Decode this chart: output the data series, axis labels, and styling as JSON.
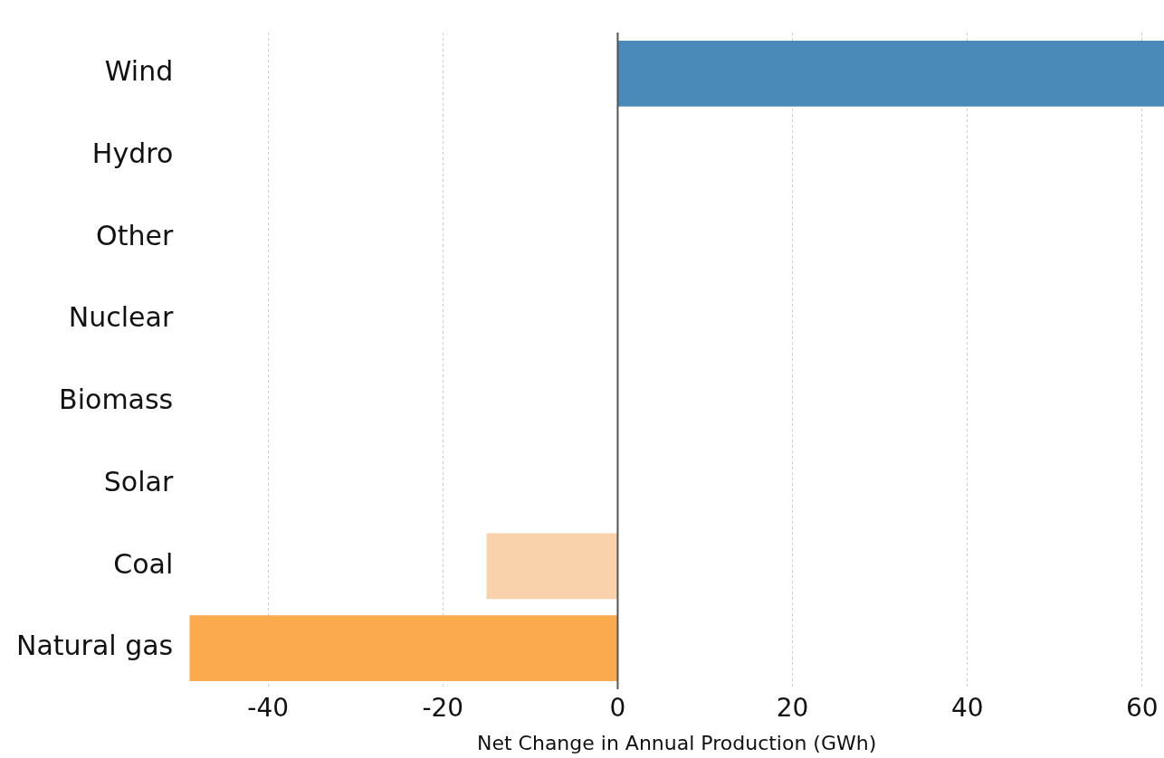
{
  "chart_data": {
    "type": "bar",
    "orientation": "horizontal",
    "xlabel": "Net Change in Annual Production (GWh)",
    "categories": [
      "Wind",
      "Hydro",
      "Other",
      "Nuclear",
      "Biomass",
      "Solar",
      "Coal",
      "Natural gas"
    ],
    "values": [
      62.5,
      0,
      0,
      0,
      0,
      0,
      -15,
      -49
    ],
    "colors": [
      "#4a8ab9",
      "#4a8ab9",
      "#4a8ab9",
      "#4a8ab9",
      "#4a8ab9",
      "#4a8ab9",
      "#f9d2ab",
      "#fbab4e"
    ],
    "xlim": [
      -49,
      62.5
    ],
    "xticks": [
      -40,
      -20,
      0,
      20,
      40,
      60
    ],
    "grid": "x",
    "ref_lines": [
      {
        "axis": "x",
        "value": 0,
        "color": "#555555"
      }
    ]
  }
}
